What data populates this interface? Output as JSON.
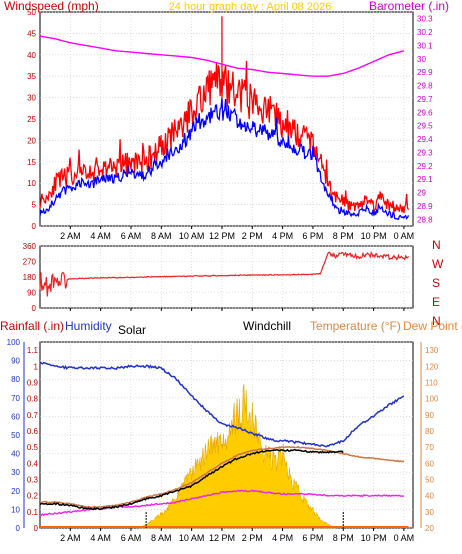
{
  "page_title": "24 hour graph day : April 08 2026",
  "colors": {
    "wind_gust": "#ff0000",
    "wind_avg": "#0000ff",
    "barometer": "#ff00ff",
    "wind_dir": "#ee2222",
    "humidity": "#2233cc",
    "solar": "#ffcc00",
    "solar_dark": "#e6a800",
    "windchill": "#000000",
    "temperature": "#cc7744",
    "dew_point": "#ee22ee",
    "rain": "#ff6600",
    "label_rain": "#cc0000",
    "label_humidity": "#2233cc",
    "label_temp": "#dd8844",
    "label_dew": "#ee8833",
    "grid": "#cccccc",
    "axis_left": "#cc0000",
    "axis_right": "#cc00cc",
    "axis_right3": "#dd8844"
  },
  "chart_data": [
    {
      "type": "line",
      "title": "24 hour graph day : April 08 2026",
      "ylabel": "Windspeed (mph)",
      "y2label": "Barometer (.in)",
      "xlabel": "",
      "x_ticks": [
        "2 AM",
        "4 AM",
        "6 AM",
        "8 AM",
        "10 AM",
        "12 PM",
        "2 PM",
        "4 PM",
        "6 PM",
        "8 PM",
        "10 PM",
        "0 AM"
      ],
      "xlim": [
        0,
        24.6
      ],
      "ylim": [
        0,
        50
      ],
      "y_ticks": [
        0,
        5,
        10,
        15,
        20,
        25,
        30,
        35,
        40,
        45,
        50
      ],
      "y2lim": [
        28.75,
        30.35
      ],
      "y2_ticks": [
        "28.8",
        "28.9",
        "29",
        "29.1",
        "29.2",
        "29.3",
        "29.4",
        "29.5",
        "29.6",
        "29.7",
        "29.8",
        "29.9",
        "30",
        "30.1",
        "30.2",
        "30.3"
      ],
      "series": [
        {
          "name": "Windspeed (mph)",
          "axis": "left",
          "x": [
            0,
            0.5,
            1,
            1.5,
            2,
            2.5,
            3,
            3.5,
            4,
            4.5,
            5,
            5.5,
            6,
            6.5,
            7,
            7.5,
            8,
            8.5,
            9,
            9.5,
            10,
            10.5,
            11,
            11.5,
            12,
            12.5,
            13,
            13.5,
            14,
            14.5,
            15,
            15.5,
            16,
            16.5,
            17,
            17.5,
            18,
            18.5,
            19,
            19.5,
            20,
            20.5,
            21,
            21.5,
            22,
            22.5,
            23,
            23.5,
            24
          ],
          "y": [
            6,
            7,
            10,
            11,
            12,
            12,
            12,
            13,
            13,
            14,
            14,
            14,
            15,
            15,
            15,
            17,
            19,
            20,
            22,
            24,
            27,
            30,
            32,
            33,
            34,
            32,
            31,
            30,
            29,
            28,
            27,
            26,
            24,
            23,
            22,
            21,
            19,
            15,
            10,
            7,
            6,
            5,
            5,
            6,
            5,
            7,
            5,
            4,
            4
          ]
        },
        {
          "name": "Wind average",
          "axis": "left",
          "x": [
            0,
            0.5,
            1,
            1.5,
            2,
            2.5,
            3,
            3.5,
            4,
            4.5,
            5,
            5.5,
            6,
            6.5,
            7,
            7.5,
            8,
            8.5,
            9,
            9.5,
            10,
            10.5,
            11,
            11.5,
            12,
            12.5,
            13,
            13.5,
            14,
            14.5,
            15,
            15.5,
            16,
            16.5,
            17,
            17.5,
            18,
            18.5,
            19,
            19.5,
            20,
            20.5,
            21,
            21.5,
            22,
            22.5,
            23,
            23.5,
            24
          ],
          "y": [
            3,
            4,
            6,
            8,
            9,
            10,
            10,
            10,
            11,
            11,
            11,
            12,
            12,
            12,
            12,
            14,
            15,
            17,
            18,
            20,
            22,
            24,
            25,
            26,
            27,
            26,
            25,
            24,
            23,
            22,
            22,
            21,
            20,
            19,
            18,
            17,
            16,
            12,
            7,
            4,
            3,
            3,
            3,
            4,
            3,
            4,
            3,
            2,
            2
          ]
        },
        {
          "name": "Barometer (.in)",
          "axis": "right",
          "x": [
            0,
            1,
            2,
            3,
            4,
            5,
            6,
            7,
            8,
            9,
            10,
            11,
            12,
            13,
            14,
            15,
            16,
            17,
            18,
            19,
            20,
            21,
            22,
            23,
            24
          ],
          "y": [
            30.17,
            30.15,
            30.12,
            30.1,
            30.08,
            30.06,
            30.05,
            30.04,
            30.03,
            30.02,
            30.01,
            29.99,
            29.96,
            29.93,
            29.92,
            29.9,
            29.89,
            29.88,
            29.87,
            29.87,
            29.89,
            29.93,
            29.98,
            30.03,
            30.06
          ]
        }
      ]
    },
    {
      "type": "line",
      "title": "",
      "ylabel": "",
      "y2label": "",
      "x_ticks": [],
      "xlim": [
        0,
        24.6
      ],
      "ylim": [
        0,
        360
      ],
      "y_ticks": [
        0,
        90,
        180,
        270,
        360
      ],
      "right_labels": [
        "N",
        "W",
        "S",
        "E",
        "N"
      ],
      "series": [
        {
          "name": "Wind direction",
          "x": [
            0,
            0.5,
            1,
            1.5,
            2,
            3,
            4,
            5,
            6,
            7,
            8,
            9,
            10,
            11,
            12,
            13,
            14,
            15,
            16,
            17,
            18,
            18.5,
            19,
            19.5,
            20,
            21,
            22,
            23,
            24
          ],
          "y": [
            160,
            120,
            175,
            160,
            170,
            172,
            175,
            176,
            178,
            180,
            182,
            183,
            185,
            187,
            188,
            190,
            191,
            192,
            193,
            194,
            195,
            200,
            320,
            305,
            315,
            300,
            310,
            295,
            290
          ]
        }
      ]
    },
    {
      "type": "area",
      "title": "",
      "ylabel": "Rainfall (.in)",
      "labels": {
        "rain": "Rainfall (.in)",
        "humidity": "Humidity",
        "solar": "Solar",
        "windchill": "Windchill",
        "temperature": "Temperature (°F)",
        "dew_point": "Dew Point (°F)"
      },
      "x_ticks": [
        "2 AM",
        "4 AM",
        "6 AM",
        "8 AM",
        "10 AM",
        "12 PM",
        "2 PM",
        "4 PM",
        "6 PM",
        "8 PM",
        "10 PM",
        "0 AM"
      ],
      "xlim": [
        0,
        24.6
      ],
      "humidity_ylim": [
        0,
        100
      ],
      "humidity_ticks": [
        0,
        10,
        20,
        30,
        40,
        50,
        60,
        70,
        80,
        90,
        100
      ],
      "rain_ylim": [
        0,
        1.15
      ],
      "rain_ticks": [
        "0",
        "0.1",
        "0.2",
        "0.3",
        "0.4",
        "0.5",
        "0.6",
        "0.7",
        "0.8",
        "0.9",
        "1",
        "1.1"
      ],
      "temp_ylim": [
        20,
        135
      ],
      "temp_ticks": [
        20,
        30,
        40,
        50,
        60,
        70,
        80,
        90,
        100,
        110,
        120,
        130
      ],
      "markers_x": [
        7,
        20
      ],
      "series": [
        {
          "name": "Humidity",
          "axis": "humidity",
          "x": [
            0,
            1,
            2,
            3,
            4,
            5,
            6,
            7,
            8,
            9,
            10,
            11,
            12,
            13,
            14,
            15,
            15.5,
            16,
            17,
            18,
            19,
            20,
            21,
            22,
            23,
            24
          ],
          "y": [
            89,
            87,
            86,
            86,
            86,
            86,
            87,
            87,
            86,
            80,
            71,
            63,
            56,
            54,
            51,
            48,
            47,
            47,
            46,
            45,
            44,
            47,
            55,
            60,
            66,
            71
          ]
        },
        {
          "name": "Solar",
          "axis": "humidity",
          "x": [
            6.5,
            7,
            7.5,
            8,
            8.5,
            9,
            9.5,
            10,
            10.5,
            11,
            11.5,
            12,
            12.5,
            13,
            13.5,
            14,
            14.5,
            15,
            15.5,
            16,
            16.5,
            17,
            17.5,
            18,
            18.5,
            19,
            19.5
          ],
          "y": [
            0,
            2,
            5,
            8,
            12,
            18,
            25,
            32,
            38,
            44,
            48,
            52,
            58,
            65,
            72,
            62,
            48,
            42,
            38,
            45,
            28,
            22,
            15,
            10,
            5,
            2,
            0
          ]
        },
        {
          "name": "Windchill",
          "axis": "temp",
          "x": [
            0,
            1,
            2,
            3,
            4,
            5,
            6,
            7,
            8,
            9,
            10,
            11,
            12,
            13,
            14,
            15,
            16,
            17,
            18,
            19,
            20
          ],
          "y": [
            35,
            35,
            34,
            32,
            32,
            33,
            35,
            38,
            40,
            43,
            46,
            52,
            58,
            63,
            66,
            68,
            68,
            68,
            67,
            67,
            67
          ]
        },
        {
          "name": "Temperature (°F)",
          "axis": "temp",
          "x": [
            0,
            1,
            2,
            3,
            4,
            5,
            6,
            7,
            8,
            9,
            10,
            11,
            12,
            13,
            14,
            15,
            16,
            17,
            18,
            19,
            20,
            21,
            22,
            23,
            24
          ],
          "y": [
            36,
            36,
            35,
            33,
            33,
            34,
            36,
            39,
            41,
            44,
            48,
            54,
            60,
            65,
            68,
            69,
            70,
            70,
            69,
            68,
            66,
            64,
            63,
            62,
            61
          ]
        },
        {
          "name": "Dew Point (°F)",
          "axis": "temp",
          "x": [
            0,
            1,
            2,
            3,
            4,
            5,
            6,
            7,
            8,
            9,
            10,
            11,
            12,
            13,
            14,
            15,
            16,
            17,
            18,
            19,
            20,
            21,
            22,
            23,
            24
          ],
          "y": [
            28,
            29,
            30,
            31,
            32,
            33,
            33,
            34,
            35,
            36,
            38,
            40,
            42,
            43,
            43,
            42,
            41,
            41,
            41,
            40,
            40,
            40,
            40,
            40,
            40
          ]
        },
        {
          "name": "Rainfall (.in)",
          "axis": "rain",
          "x": [
            0,
            24.3
          ],
          "y": [
            0,
            0
          ]
        }
      ]
    }
  ]
}
